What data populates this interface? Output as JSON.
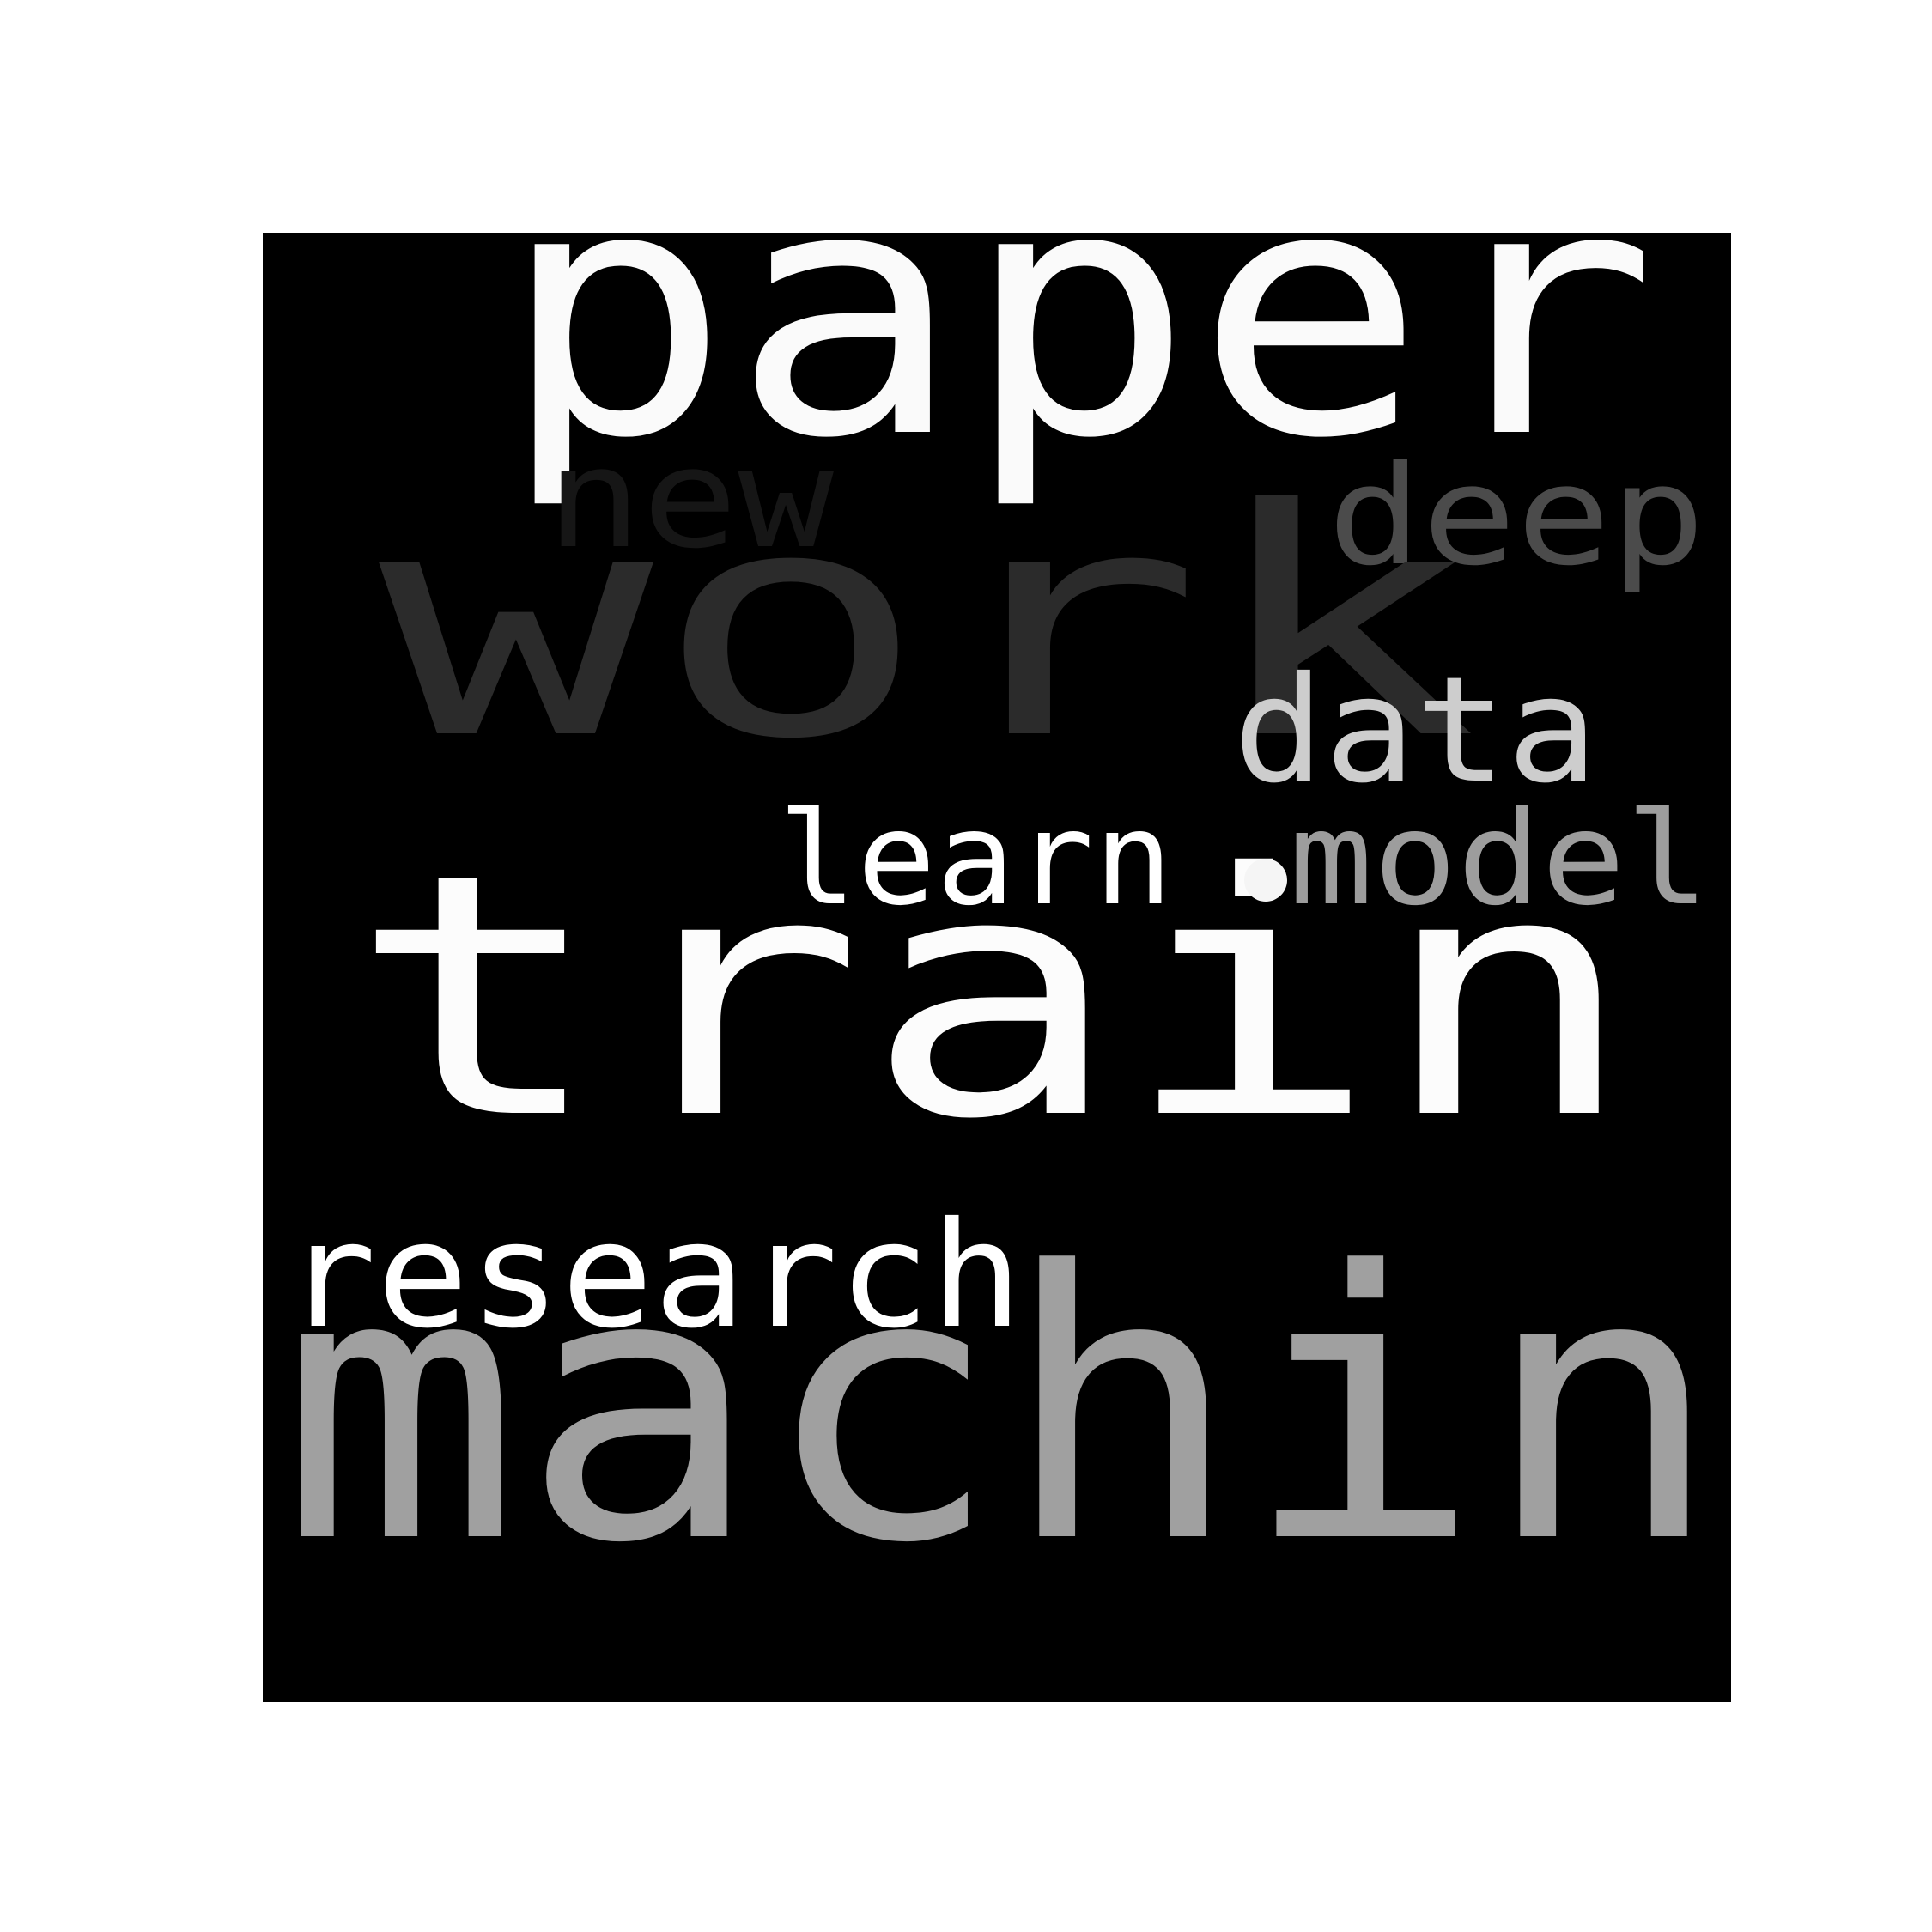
{
  "words": [
    {
      "text": "paper",
      "color": "#fafafa"
    },
    {
      "text": "new",
      "color": "#161616"
    },
    {
      "text": "deep",
      "color": "#4b4b4b"
    },
    {
      "text": "work",
      "color": "#2b2b2b"
    },
    {
      "text": "data",
      "color": "#cdcdcd"
    },
    {
      "text": "learn",
      "color": "#ffffff"
    },
    {
      "text": "model",
      "color": "#9d9d9d"
    },
    {
      "text": "train",
      "color": "#fcfcfc"
    },
    {
      "text": "research",
      "color": "#ffffff"
    },
    {
      "text": "machin",
      "color": "#a0a0a0"
    }
  ],
  "colors": {
    "background": "#000000",
    "page": "#ffffff",
    "dot": "#f5f5f5"
  }
}
